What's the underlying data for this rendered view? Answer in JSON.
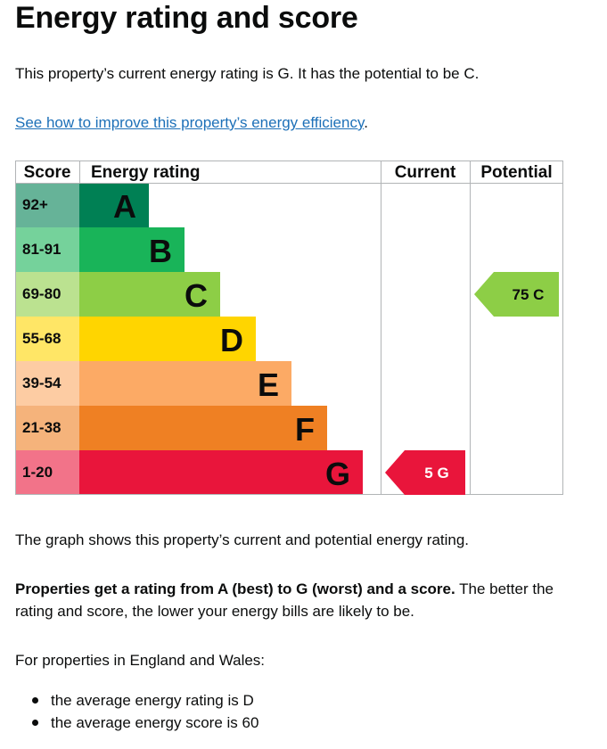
{
  "title": "Energy rating and score",
  "intro": "This property’s current energy rating is G. It has the potential to be C.",
  "improve_link": "See how to improve this property’s energy efficiency",
  "improve_link_suffix": ".",
  "graph_note": "The graph shows this property’s current and potential energy rating.",
  "rating_strong": "Properties get a rating from A (best) to G (worst) and a score.",
  "rating_rest": " The better the rating and score, the lower your energy bills are likely to be.",
  "regional_intro": "For properties in England and Wales:",
  "bullets": [
    "the average energy rating is D",
    "the average energy score is 60"
  ],
  "chart_data": {
    "type": "table",
    "headers": {
      "score": "Score",
      "rating": "Energy rating",
      "current": "Current",
      "potential": "Potential"
    },
    "bands": [
      {
        "score": "92+",
        "letter": "A",
        "color": "#008054",
        "score_color": "#66b398"
      },
      {
        "score": "81-91",
        "letter": "B",
        "color": "#19b459",
        "score_color": "#75d29b"
      },
      {
        "score": "69-80",
        "letter": "C",
        "color": "#8dce46",
        "score_color": "#bbe290"
      },
      {
        "score": "55-68",
        "letter": "D",
        "color": "#ffd500",
        "score_color": "#ffe666"
      },
      {
        "score": "39-54",
        "letter": "E",
        "color": "#fcaa65",
        "score_color": "#fdcca3"
      },
      {
        "score": "21-38",
        "letter": "F",
        "color": "#ef8023",
        "score_color": "#f5b37b"
      },
      {
        "score": "1-20",
        "letter": "G",
        "color": "#e9153b",
        "score_color": "#f27389"
      }
    ],
    "current": {
      "value": 5,
      "letter": "G",
      "label": "5 G",
      "color": "#e9153b"
    },
    "potential": {
      "value": 75,
      "letter": "C",
      "label": "75 C",
      "color": "#8dce46"
    }
  }
}
